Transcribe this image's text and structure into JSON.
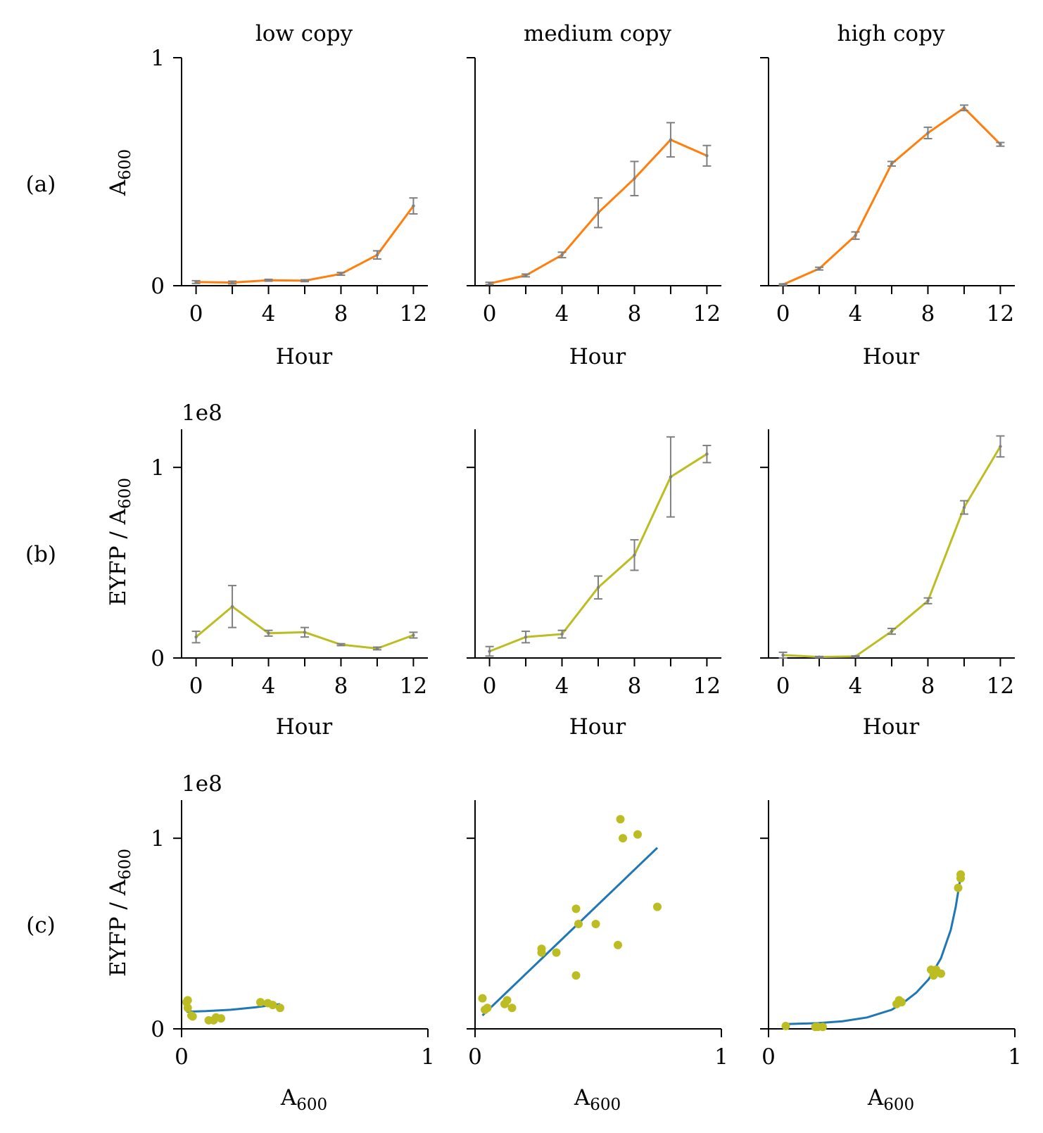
{
  "column_titles": [
    "low copy",
    "medium copy",
    "high copy"
  ],
  "row_labels": [
    "(a)",
    "(b)",
    "(c)"
  ],
  "row_y_labels": {
    "a": {
      "base": "A",
      "sub": "600"
    },
    "b": {
      "base": "EYFP / A",
      "sub": "600"
    },
    "c": {
      "base": "EYFP / A",
      "sub": "600"
    }
  },
  "x_titles": {
    "hour": "Hour",
    "a600": {
      "base": "A",
      "sub": "600"
    }
  },
  "offset_text": "1e8",
  "colors": {
    "orange": "#ff7f0e",
    "olive": "#bcbd22",
    "blue": "#1f77b4",
    "errorbar": "#808080"
  },
  "chart_data": [
    {
      "type": "line",
      "row": "a",
      "col": "low copy",
      "x": [
        0,
        2,
        4,
        6,
        8,
        10,
        12
      ],
      "y": [
        0.016,
        0.014,
        0.024,
        0.022,
        0.052,
        0.135,
        0.35
      ],
      "yerr": [
        0.006,
        0.006,
        0.004,
        0.004,
        0.006,
        0.018,
        0.035
      ],
      "xticks": [
        0,
        4,
        8,
        12
      ],
      "yticks": [
        0,
        1
      ],
      "xlim": [
        -0.8,
        12.8
      ],
      "ylim": [
        0,
        1
      ]
    },
    {
      "type": "line",
      "row": "a",
      "col": "medium copy",
      "x": [
        0,
        2,
        4,
        6,
        8,
        10,
        12
      ],
      "y": [
        0.01,
        0.045,
        0.135,
        0.32,
        0.47,
        0.64,
        0.57
      ],
      "yerr": [
        0.005,
        0.006,
        0.012,
        0.065,
        0.075,
        0.075,
        0.045
      ],
      "xticks": [
        0,
        4,
        8,
        12
      ],
      "yticks": [
        0,
        1
      ],
      "xlim": [
        -0.8,
        12.8
      ],
      "ylim": [
        0,
        1
      ]
    },
    {
      "type": "line",
      "row": "a",
      "col": "high copy",
      "x": [
        0,
        2,
        4,
        6,
        8,
        10,
        12
      ],
      "y": [
        0.005,
        0.075,
        0.22,
        0.535,
        0.67,
        0.78,
        0.62
      ],
      "yerr": [
        0.003,
        0.006,
        0.016,
        0.01,
        0.025,
        0.012,
        0.008
      ],
      "xticks": [
        0,
        4,
        8,
        12
      ],
      "yticks": [
        0,
        1
      ],
      "xlim": [
        -0.8,
        12.8
      ],
      "ylim": [
        0,
        1
      ]
    },
    {
      "type": "line",
      "row": "b",
      "col": "low copy",
      "x": [
        0,
        2,
        4,
        6,
        8,
        10,
        12
      ],
      "y": [
        11000000,
        27000000,
        13000000,
        13500000,
        7000000,
        5000000,
        12000000
      ],
      "yerr": [
        3000000,
        11000000,
        1500000,
        2500000,
        500000,
        700000,
        1500000
      ],
      "xticks": [
        0,
        4,
        8,
        12
      ],
      "yticks": [
        0,
        100000000
      ],
      "xlim": [
        -0.8,
        12.8
      ],
      "ylim": [
        0,
        120000000
      ]
    },
    {
      "type": "line",
      "row": "b",
      "col": "medium copy",
      "x": [
        0,
        2,
        4,
        6,
        8,
        10,
        12
      ],
      "y": [
        3500000,
        11000000,
        12500000,
        37000000,
        54000000,
        95000000,
        107000000
      ],
      "yerr": [
        2500000,
        3000000,
        2000000,
        6000000,
        8000000,
        21000000,
        4500000
      ],
      "xticks": [
        0,
        4,
        8,
        12
      ],
      "yticks": [
        0,
        100000000
      ],
      "xlim": [
        -0.8,
        12.8
      ],
      "ylim": [
        0,
        120000000
      ]
    },
    {
      "type": "line",
      "row": "b",
      "col": "high copy",
      "x": [
        0,
        2,
        4,
        6,
        8,
        10,
        12
      ],
      "y": [
        1500000,
        500000,
        800000,
        14000000,
        30000000,
        79000000,
        111000000
      ],
      "yerr": [
        1500000,
        300000,
        300000,
        1500000,
        1500000,
        3500000,
        5500000
      ],
      "xticks": [
        0,
        4,
        8,
        12
      ],
      "yticks": [
        0,
        100000000
      ],
      "xlim": [
        -0.8,
        12.8
      ],
      "ylim": [
        0,
        120000000
      ]
    },
    {
      "type": "scatter",
      "row": "c",
      "col": "low copy",
      "points": [
        [
          0.02,
          14000000
        ],
        [
          0.025,
          15000000
        ],
        [
          0.025,
          11000000
        ],
        [
          0.04,
          7000000
        ],
        [
          0.045,
          6500000
        ],
        [
          0.11,
          4500000
        ],
        [
          0.13,
          4500000
        ],
        [
          0.14,
          6000000
        ],
        [
          0.16,
          5500000
        ],
        [
          0.32,
          14000000
        ],
        [
          0.35,
          13500000
        ],
        [
          0.37,
          12500000
        ],
        [
          0.4,
          11000000
        ]
      ],
      "fit": [
        [
          0.02,
          9000000
        ],
        [
          0.1,
          9300000
        ],
        [
          0.2,
          10000000
        ],
        [
          0.3,
          11300000
        ],
        [
          0.4,
          13000000
        ]
      ],
      "xticks": [
        0,
        1
      ],
      "yticks": [
        0,
        100000000
      ],
      "xlim": [
        0,
        1
      ],
      "ylim": [
        0,
        120000000
      ]
    },
    {
      "type": "scatter",
      "row": "c",
      "col": "medium copy",
      "points": [
        [
          0.03,
          16000000
        ],
        [
          0.04,
          10000000
        ],
        [
          0.05,
          11000000
        ],
        [
          0.12,
          13000000
        ],
        [
          0.13,
          15000000
        ],
        [
          0.15,
          11000000
        ],
        [
          0.27,
          42000000
        ],
        [
          0.27,
          40000000
        ],
        [
          0.33,
          40000000
        ],
        [
          0.41,
          28000000
        ],
        [
          0.41,
          63000000
        ],
        [
          0.42,
          55000000
        ],
        [
          0.49,
          55000000
        ],
        [
          0.58,
          44000000
        ],
        [
          0.59,
          110000000
        ],
        [
          0.6,
          100000000
        ],
        [
          0.66,
          102000000
        ],
        [
          0.74,
          64000000
        ]
      ],
      "fit": [
        [
          0.03,
          7000000
        ],
        [
          0.74,
          95000000
        ]
      ],
      "xticks": [
        0,
        1
      ],
      "yticks": [
        0,
        100000000
      ],
      "xlim": [
        0,
        1
      ],
      "ylim": [
        0,
        120000000
      ]
    },
    {
      "type": "scatter",
      "row": "c",
      "col": "high copy",
      "points": [
        [
          0.07,
          1500000
        ],
        [
          0.19,
          1000000
        ],
        [
          0.2,
          1000000
        ],
        [
          0.22,
          1000000
        ],
        [
          0.52,
          13000000
        ],
        [
          0.53,
          15000000
        ],
        [
          0.54,
          14000000
        ],
        [
          0.66,
          31000000
        ],
        [
          0.67,
          28000000
        ],
        [
          0.68,
          31000000
        ],
        [
          0.7,
          29000000
        ],
        [
          0.77,
          74000000
        ],
        [
          0.78,
          79000000
        ],
        [
          0.78,
          81000000
        ]
      ],
      "fit": [
        [
          0.07,
          2500000
        ],
        [
          0.2,
          3000000
        ],
        [
          0.3,
          4000000
        ],
        [
          0.4,
          6000000
        ],
        [
          0.5,
          10000000
        ],
        [
          0.55,
          14000000
        ],
        [
          0.6,
          19000000
        ],
        [
          0.65,
          26000000
        ],
        [
          0.7,
          37000000
        ],
        [
          0.74,
          52000000
        ],
        [
          0.76,
          64000000
        ],
        [
          0.78,
          80000000
        ]
      ],
      "xticks": [
        0,
        1
      ],
      "yticks": [
        0,
        100000000
      ],
      "xlim": [
        0,
        1
      ],
      "ylim": [
        0,
        120000000
      ]
    }
  ]
}
